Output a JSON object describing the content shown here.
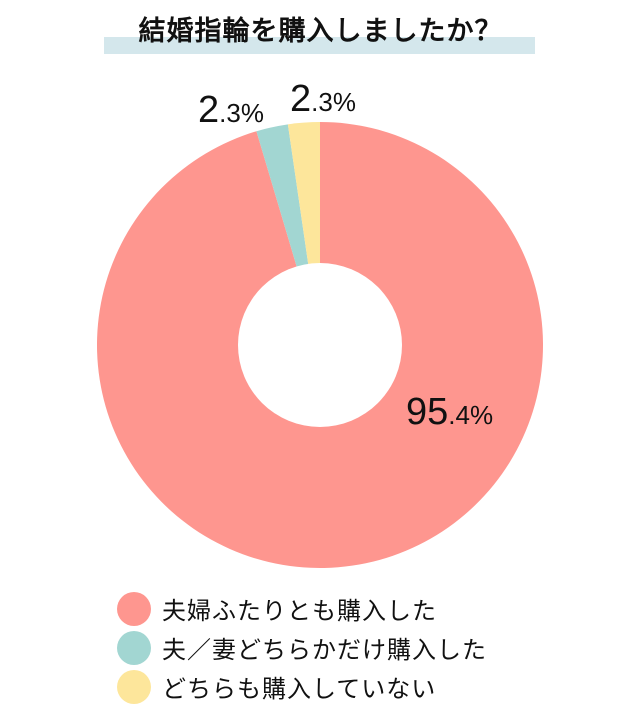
{
  "title": "結婚指輪を購入しましたか？",
  "chart_data": {
    "type": "pie",
    "subtype": "donut",
    "title": "結婚指輪を購入しましたか？",
    "categories": [
      "夫婦ふたりとも購入した",
      "夫／妻どちらかだけ購入した",
      "どちらも購入していない"
    ],
    "values": [
      95.4,
      2.3,
      2.3
    ],
    "colors": [
      "#fe968f",
      "#a2d6d2",
      "#fde69b"
    ],
    "data_labels": [
      {
        "big": "95",
        "small": ".4%"
      },
      {
        "big": "2",
        "small": ".3%"
      },
      {
        "big": "2",
        "small": ".3%"
      }
    ],
    "start_angle": "12 o'clock",
    "direction": "clockwise",
    "legend_position": "bottom-left"
  },
  "legend": {
    "items": [
      {
        "label": "夫婦ふたりとも購入した",
        "color": "#fe968f"
      },
      {
        "label": "夫／妻どちらかだけ購入した",
        "color": "#a2d6d2"
      },
      {
        "label": "どちらも購入していない",
        "color": "#fde69b"
      }
    ]
  },
  "colors": {
    "title_highlight": "#d4e7ec",
    "background": "#ffffff"
  }
}
